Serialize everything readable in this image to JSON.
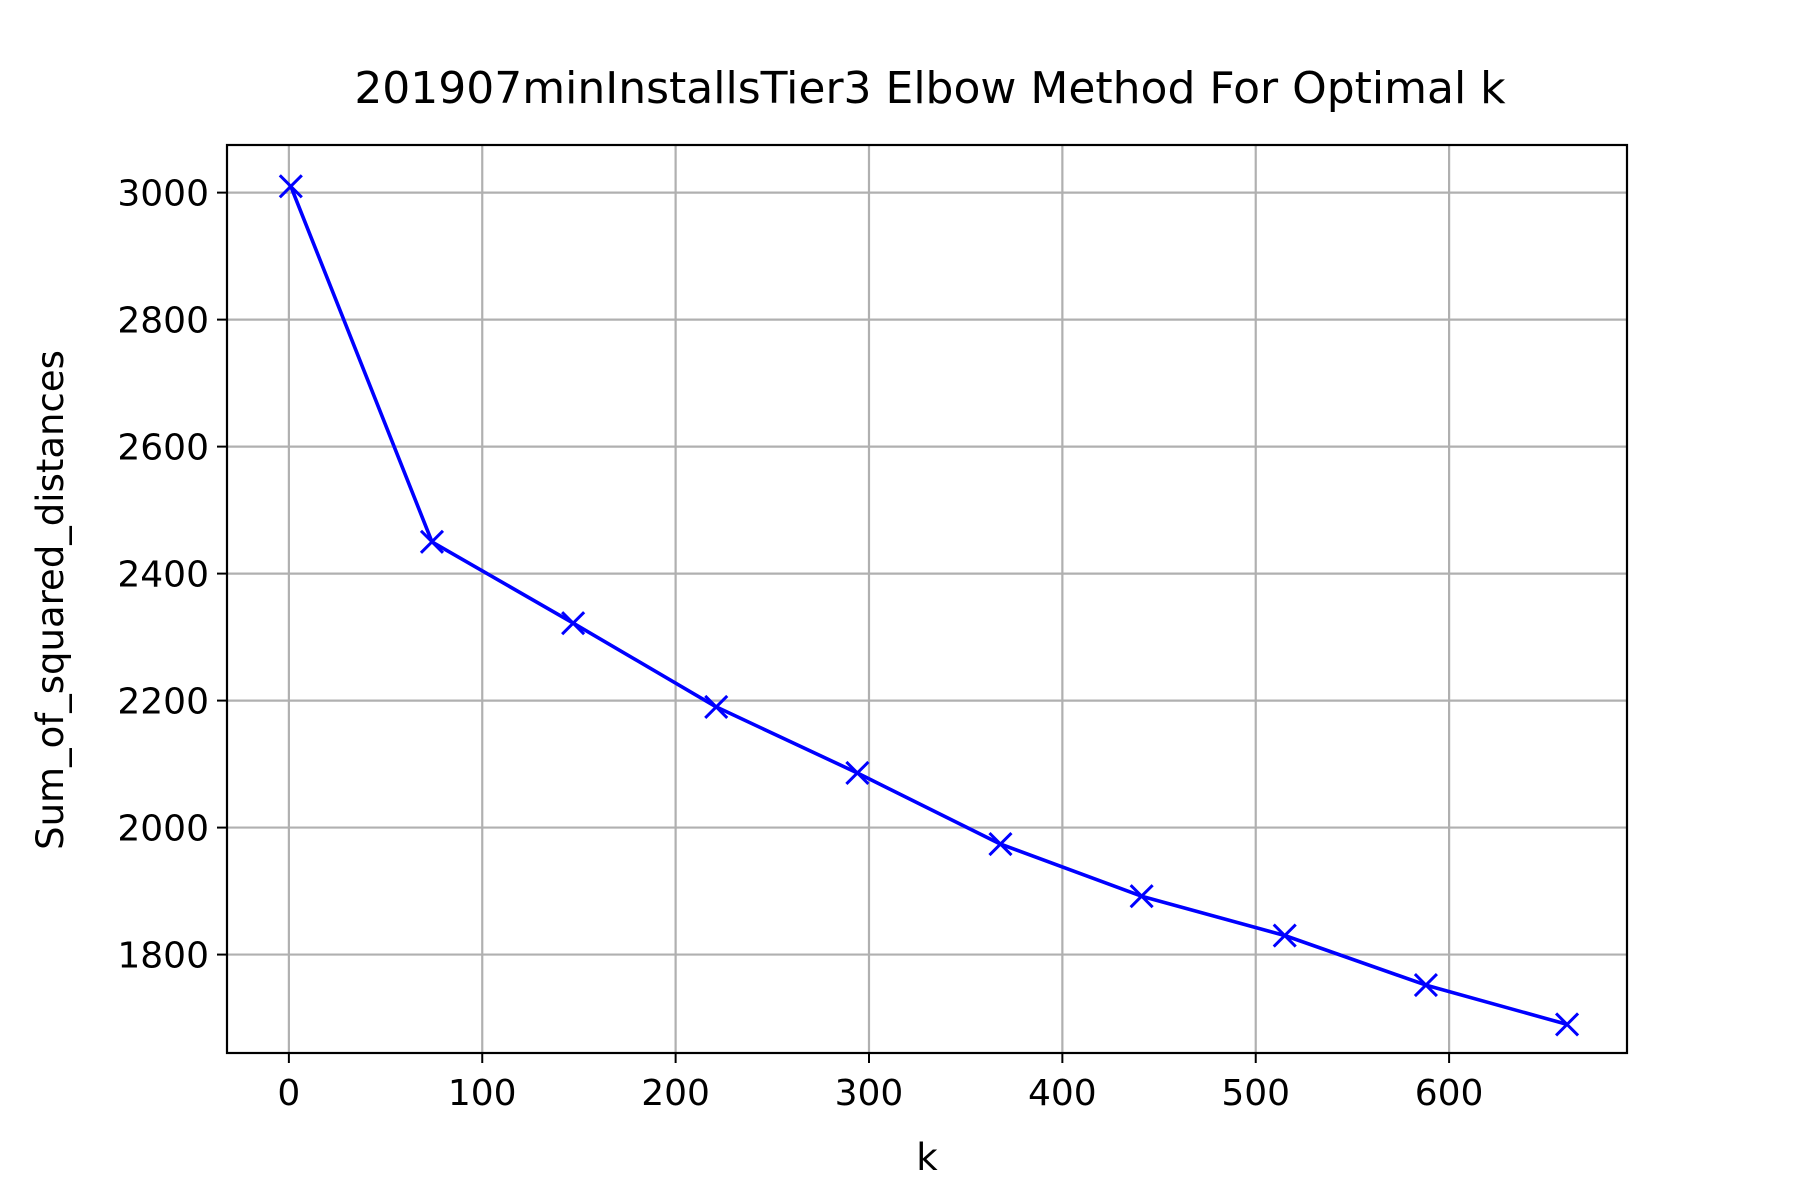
{
  "colors": {
    "line": "#0000ff",
    "grid": "#b0b0b0",
    "axis": "#000000",
    "background": "#ffffff"
  },
  "chart_data": {
    "type": "line",
    "title": "201907minInstallsTier3 Elbow Method For Optimal k",
    "xlabel": "k",
    "ylabel": "Sum_of_squared_distances",
    "xlim": [
      -32,
      692
    ],
    "ylim": [
      1645,
      3075
    ],
    "xticks": [
      0,
      100,
      200,
      300,
      400,
      500,
      600
    ],
    "yticks": [
      1800,
      2000,
      2200,
      2400,
      2600,
      2800,
      3000
    ],
    "grid": true,
    "marker": "x",
    "series": [
      {
        "x": [
          1,
          74,
          147,
          221,
          294,
          368,
          441,
          515,
          588,
          661
        ],
        "y": [
          3010,
          2450,
          2322,
          2190,
          2086,
          1974,
          1892,
          1830,
          1752,
          1690
        ]
      }
    ]
  }
}
